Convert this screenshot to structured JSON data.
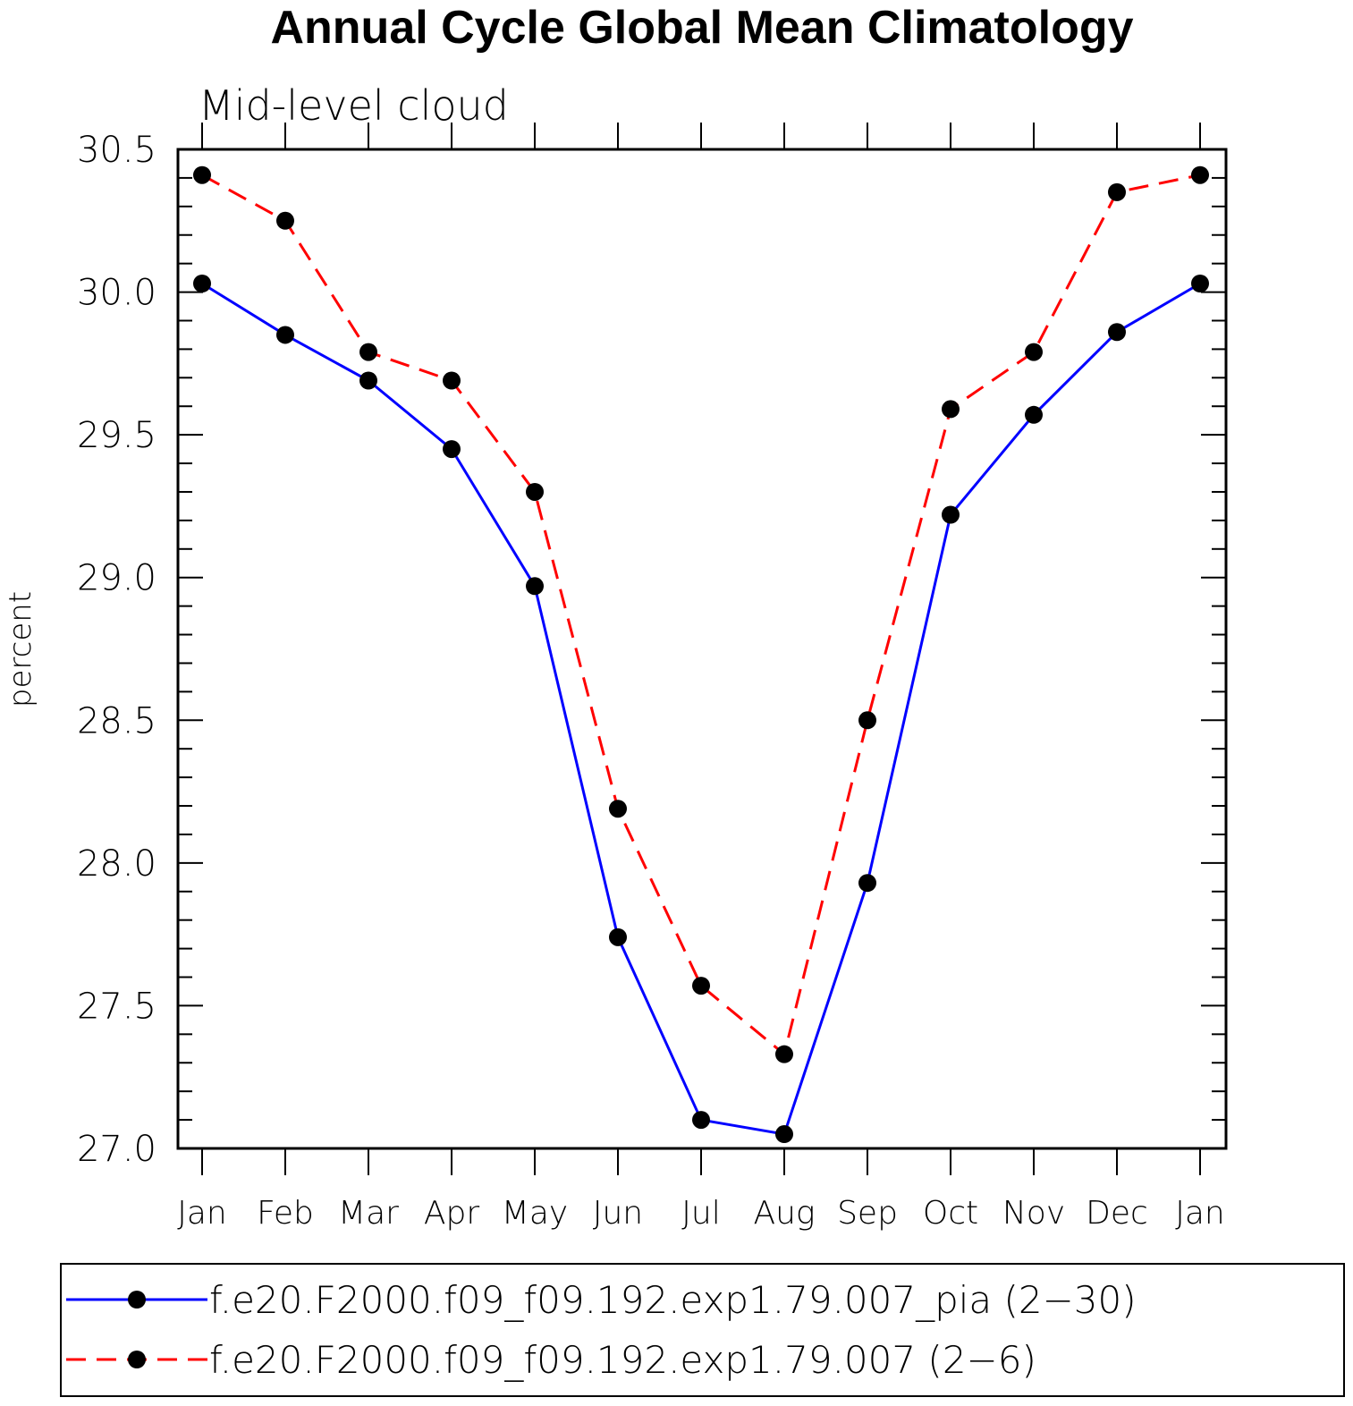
{
  "chart_data": {
    "type": "line",
    "title": "Annual Cycle Global Mean Climatology",
    "subtitle": "Mid-level cloud",
    "xlabel": "",
    "ylabel": "percent",
    "categories": [
      "Jan",
      "Feb",
      "Mar",
      "Apr",
      "May",
      "Jun",
      "Jul",
      "Aug",
      "Sep",
      "Oct",
      "Nov",
      "Dec",
      "Jan"
    ],
    "ylim": [
      27.0,
      30.5
    ],
    "yticks": [
      "27.0",
      "27.5",
      "28.0",
      "28.5",
      "29.0",
      "29.5",
      "30.0",
      "30.5"
    ],
    "grid": false,
    "legend_position": "bottom",
    "series": [
      {
        "name": "f.e20.F2000.f09_f09.192.exp1.79.007_pia (2−30)",
        "color": "#0000ff",
        "line_style": "solid",
        "marker": "filled-circle",
        "values": [
          30.03,
          29.85,
          29.69,
          29.45,
          28.97,
          27.74,
          27.1,
          27.05,
          27.93,
          29.22,
          29.57,
          29.86,
          30.03
        ]
      },
      {
        "name": "f.e20.F2000.f09_f09.192.exp1.79.007 (2−6)",
        "color": "#ff0000",
        "line_style": "dashed",
        "marker": "filled-circle",
        "values": [
          30.41,
          30.25,
          29.79,
          29.69,
          29.3,
          28.19,
          27.57,
          27.33,
          28.5,
          29.59,
          29.79,
          30.35,
          30.41
        ]
      }
    ]
  }
}
